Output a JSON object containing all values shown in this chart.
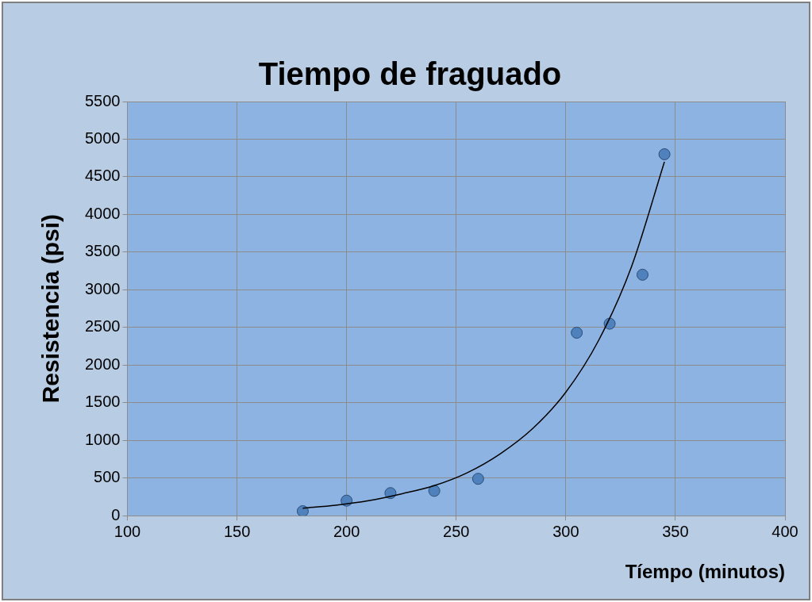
{
  "chart_data": {
    "type": "scatter",
    "title": "Tiempo de fraguado",
    "xlabel": "Tíempo (minutos)",
    "ylabel": "Resistencia (psi)",
    "xlim": [
      100,
      400
    ],
    "xticks": [
      100,
      150,
      200,
      250,
      300,
      350,
      400
    ],
    "ylim": [
      0,
      5500
    ],
    "yticks": [
      0,
      500,
      1000,
      1500,
      2000,
      2500,
      3000,
      3500,
      4000,
      4500,
      5000,
      5500
    ],
    "grid": true,
    "legend": false,
    "marker": "circle",
    "series": [
      {
        "color": "#4f81bd",
        "x": [
          180,
          200,
          220,
          240,
          260,
          305,
          320,
          335,
          345
        ],
        "values": [
          60,
          200,
          300,
          330,
          490,
          2430,
          2550,
          3200,
          4800
        ]
      },
      {
        "type": "line",
        "color": "#000000",
        "marker": "none",
        "x": [
          180,
          195,
          210,
          225,
          240,
          255,
          270,
          285,
          300,
          315,
          330,
          345
        ],
        "values": [
          100,
          140,
          200,
          290,
          400,
          570,
          820,
          1160,
          1640,
          2330,
          3310,
          4700
        ]
      }
    ]
  }
}
